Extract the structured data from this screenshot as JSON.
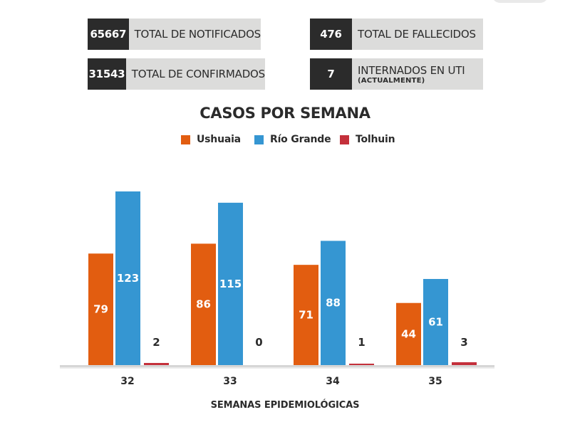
{
  "stats": [
    {
      "value": "65667",
      "label": "TOTAL DE NOTIFICADOS",
      "note": ""
    },
    {
      "value": "476",
      "label": "TOTAL DE FALLECIDOS",
      "note": ""
    },
    {
      "value": "31543",
      "label": "TOTAL DE CONFIRMADOS",
      "note": ""
    },
    {
      "value": "7",
      "label": "INTERNADOS EN UTI",
      "note": "(ACTUALMENTE)"
    }
  ],
  "chart_data": {
    "type": "bar",
    "title": "CASOS POR SEMANA",
    "xlabel": "SEMANAS EPIDEMIOLÓGICAS",
    "ylabel": "",
    "categories": [
      "32",
      "33",
      "34",
      "35"
    ],
    "series": [
      {
        "name": "Ushuaia",
        "color": "#e25d10",
        "values": [
          79,
          86,
          71,
          44
        ]
      },
      {
        "name": "Río Grande",
        "color": "#3596d2",
        "values": [
          123,
          115,
          88,
          61
        ]
      },
      {
        "name": "Tolhuin",
        "color": "#c4303b",
        "values": [
          2,
          0,
          1,
          3
        ]
      }
    ],
    "ylim": [
      0,
      123
    ],
    "grid": false,
    "legend_position": "top-center",
    "data_labels": true
  }
}
